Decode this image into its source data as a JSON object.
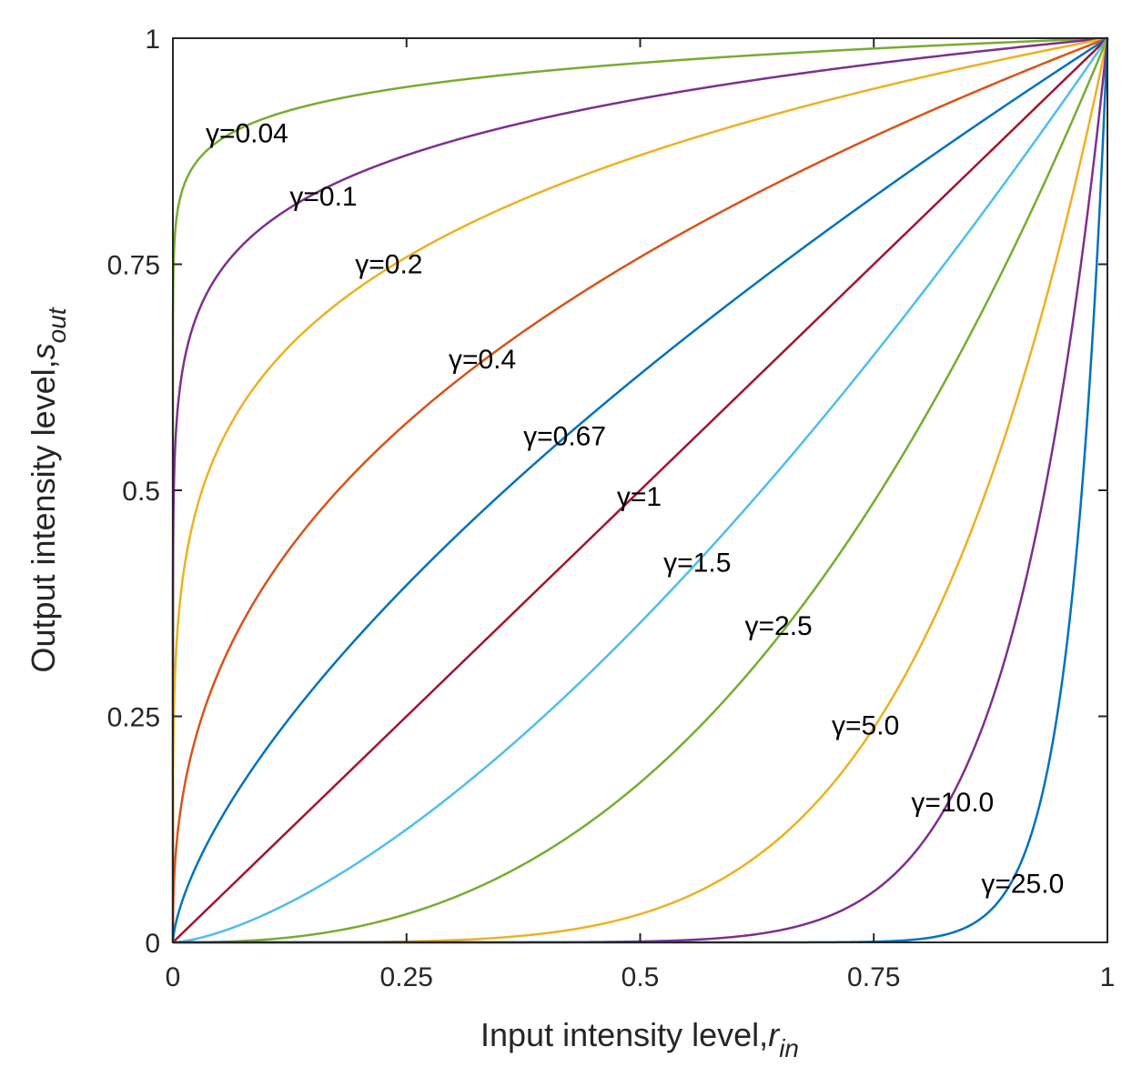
{
  "chart_data": {
    "type": "line",
    "title": "",
    "xlabel": {
      "main": "Input intensity level,",
      "symbol": "r",
      "subscript": "in"
    },
    "ylabel": {
      "main": "Output intensity level,",
      "symbol": "s",
      "subscript": "out"
    },
    "xlim": [
      0,
      1
    ],
    "ylim": [
      0,
      1
    ],
    "grid": false,
    "box": true,
    "xticks": [
      0,
      0.25,
      0.5,
      0.75,
      1
    ],
    "yticks": [
      0,
      0.25,
      0.5,
      0.75,
      1
    ],
    "xtick_labels": [
      "0",
      "0.25",
      "0.5",
      "0.75",
      "1"
    ],
    "ytick_labels": [
      "0",
      "0.25",
      "0.5",
      "0.75",
      "1"
    ],
    "formula": "s = r^gamma",
    "series": [
      {
        "name": "γ=0.04",
        "gamma": 0.04,
        "color": "#77AC30",
        "label_at": [
          0.035,
          0.885
        ]
      },
      {
        "name": "γ=0.1",
        "gamma": 0.1,
        "color": "#7E2F8E",
        "label_at": [
          0.125,
          0.815
        ]
      },
      {
        "name": "γ=0.2",
        "gamma": 0.2,
        "color": "#EDB120",
        "label_at": [
          0.195,
          0.74
        ]
      },
      {
        "name": "γ=0.4",
        "gamma": 0.4,
        "color": "#D95319",
        "label_at": [
          0.295,
          0.635
        ]
      },
      {
        "name": "γ=0.67",
        "gamma": 0.67,
        "color": "#0072BD",
        "label_at": [
          0.375,
          0.55
        ]
      },
      {
        "name": "γ=1",
        "gamma": 1.0,
        "color": "#A2142F",
        "label_at": [
          0.475,
          0.483
        ]
      },
      {
        "name": "γ=1.5",
        "gamma": 1.5,
        "color": "#4DBEEE",
        "label_at": [
          0.525,
          0.41
        ]
      },
      {
        "name": "γ=2.5",
        "gamma": 2.5,
        "color": "#77AC30",
        "label_at": [
          0.612,
          0.34
        ]
      },
      {
        "name": "γ=5.0",
        "gamma": 5.0,
        "color": "#EDB120",
        "label_at": [
          0.705,
          0.23
        ]
      },
      {
        "name": "γ=10.0",
        "gamma": 10.0,
        "color": "#7E2F8E",
        "label_at": [
          0.79,
          0.145
        ]
      },
      {
        "name": "γ=25.0",
        "gamma": 25.0,
        "color": "#0072BD",
        "label_at": [
          0.865,
          0.055
        ]
      }
    ]
  }
}
